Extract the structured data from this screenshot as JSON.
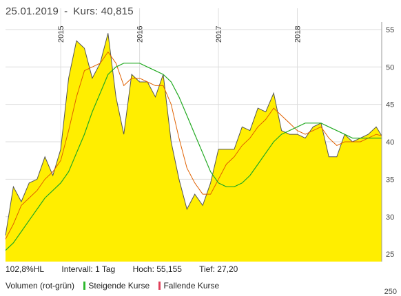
{
  "header": {
    "date": "25.01.2019",
    "separator": "-",
    "quote": "Kurs: 40,815"
  },
  "stats": {
    "range": "102,8%HL",
    "interval": "Intervall: 1 Tag",
    "high": "Hoch:  55,155",
    "low": "Tief:  27,20"
  },
  "legend": {
    "volume": "Volumen (rot-grün)",
    "rising": "Steigende Kurse",
    "falling": "Fallende Kurse",
    "rising_color": "#2eb82e",
    "falling_color": "#e0405a"
  },
  "cut_label": "250",
  "colors": {
    "area": "#ffee00",
    "price": "#555555",
    "ma_fast": "#e06000",
    "ma_slow": "#22aa22",
    "grid": "#dddddd"
  },
  "chart_data": {
    "type": "area",
    "ylim": [
      24,
      56
    ],
    "y_ticks": [
      25,
      30,
      35,
      40,
      45,
      50,
      55
    ],
    "x_range": [
      2014.3,
      2019.07
    ],
    "year_markers": [
      {
        "label": "2015",
        "x": 2015.0
      },
      {
        "label": "2016",
        "x": 2016.0
      },
      {
        "label": "2017",
        "x": 2017.0
      },
      {
        "label": "2018",
        "x": 2018.0
      }
    ],
    "x": [
      2014.3,
      2014.4,
      2014.5,
      2014.6,
      2014.7,
      2014.8,
      2014.9,
      2015.0,
      2015.1,
      2015.2,
      2015.3,
      2015.4,
      2015.5,
      2015.6,
      2015.7,
      2015.8,
      2015.9,
      2016.0,
      2016.1,
      2016.2,
      2016.3,
      2016.4,
      2016.5,
      2016.6,
      2016.7,
      2016.8,
      2016.9,
      2017.0,
      2017.1,
      2017.2,
      2017.3,
      2017.4,
      2017.5,
      2017.6,
      2017.7,
      2017.8,
      2017.9,
      2018.0,
      2018.1,
      2018.2,
      2018.3,
      2018.4,
      2018.5,
      2018.6,
      2018.7,
      2018.8,
      2018.9,
      2019.0,
      2019.07
    ],
    "series": [
      {
        "values": [
          27.5,
          34.0,
          32.0,
          34.5,
          35.0,
          38.0,
          35.5,
          39.0,
          48.5,
          53.5,
          52.5,
          48.5,
          50.5,
          54.5,
          46.0,
          41.0,
          49.0,
          48.0,
          48.0,
          46.0,
          49.0,
          40.0,
          35.0,
          31.0,
          33.0,
          31.5,
          34.5,
          39.0,
          39.0,
          39.0,
          42.0,
          41.5,
          44.5,
          44.0,
          46.5,
          41.5,
          41.0,
          41.0,
          40.5,
          42.0,
          42.5,
          38.0,
          38.0,
          41.0,
          40.0,
          40.5,
          41.0,
          42.0,
          40.8
        ]
      },
      {
        "values": [
          27.0,
          29.0,
          31.5,
          32.5,
          33.5,
          35.0,
          36.0,
          37.5,
          41.5,
          46.0,
          49.5,
          50.0,
          50.5,
          52.0,
          50.5,
          47.5,
          48.5,
          48.5,
          48.0,
          47.5,
          47.5,
          45.0,
          40.5,
          36.5,
          34.5,
          33.0,
          33.0,
          35.0,
          37.0,
          38.0,
          39.5,
          40.5,
          42.0,
          43.0,
          44.5,
          43.5,
          42.5,
          41.5,
          41.0,
          41.5,
          42.0,
          40.5,
          39.5,
          40.0,
          40.0,
          40.0,
          40.5,
          41.0,
          40.8
        ]
      },
      {
        "values": [
          25.5,
          26.5,
          28.0,
          29.5,
          31.0,
          32.5,
          33.5,
          34.5,
          36.0,
          38.5,
          41.0,
          44.0,
          46.5,
          49.0,
          50.0,
          50.5,
          50.5,
          50.5,
          50.0,
          49.5,
          49.0,
          48.0,
          46.0,
          43.5,
          41.0,
          38.5,
          36.0,
          34.5,
          34.0,
          34.0,
          34.5,
          35.5,
          37.0,
          38.5,
          40.0,
          41.0,
          41.5,
          42.0,
          42.5,
          42.5,
          42.5,
          42.0,
          41.5,
          41.0,
          40.5,
          40.5,
          40.5,
          40.5,
          40.5
        ]
      }
    ]
  }
}
